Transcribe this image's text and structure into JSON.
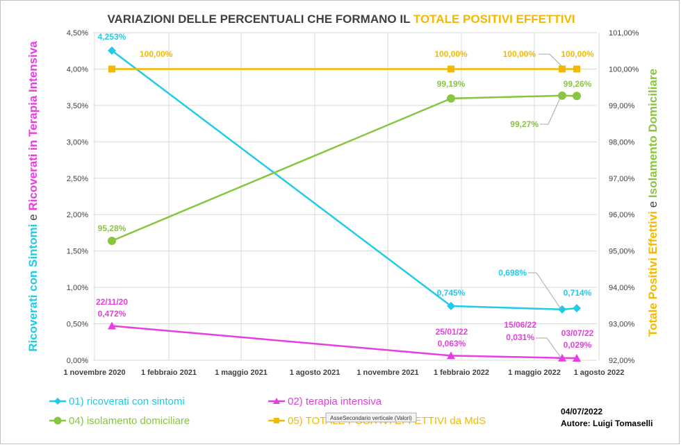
{
  "chart_data": {
    "type": "line",
    "title_parts": [
      "VARIAZIONI DELLE PERCENTUALI CHE FORMANO IL ",
      "TOTALE POSITIVI EFFETTIVI"
    ],
    "left_axis_label": [
      "Ricoverati con Sintomi",
      " e ",
      "Ricoverati in Terapia Intensiva"
    ],
    "right_axis_label": [
      "Totale Positivi Effettivi",
      " e ",
      "Isolamento Domiciliare"
    ],
    "x_tick_labels": [
      "1 novembre 2020",
      "1 febbraio 2021",
      "1 maggio 2021",
      "1 agosto 2021",
      "1 novembre 2021",
      "1 febbraio 2022",
      "1 maggio 2022",
      "1 agosto 2022"
    ],
    "left_axis": {
      "min": 0,
      "max": 4.5,
      "step": 0.5,
      "tick_labels": [
        "0,00%",
        "0,50%",
        "1,00%",
        "1,50%",
        "2,00%",
        "2,50%",
        "3,00%",
        "3,50%",
        "4,00%",
        "4,50%"
      ]
    },
    "right_axis": {
      "min": 92,
      "max": 101,
      "step": 1,
      "tick_labels": [
        "92,00%",
        "93,00%",
        "94,00%",
        "95,00%",
        "96,00%",
        "97,00%",
        "98,00%",
        "99,00%",
        "100,00%",
        "101,00%"
      ]
    },
    "dates": [
      "22/11/20",
      "25/01/22",
      "15/06/22",
      "03/07/22"
    ],
    "series": [
      {
        "key": "ricoverati",
        "name": "01) ricoverati con sintomi",
        "color": "#1ecbe8",
        "axis": "left",
        "marker": "diamond",
        "values": [
          4.253,
          0.745,
          0.698,
          0.714
        ],
        "labels": [
          "4,253%",
          "0,745%",
          "0,698%",
          "0,714%"
        ]
      },
      {
        "key": "terapia",
        "name": "02) terapia intensiva",
        "color": "#e83de3",
        "axis": "left",
        "marker": "triangle",
        "values": [
          0.472,
          0.063,
          0.031,
          0.029
        ],
        "labels": [
          "0,472%",
          "0,063%",
          "0,031%",
          "0,029%"
        ]
      },
      {
        "key": "isolamento",
        "name": "04) isolamento domiciliare",
        "color": "#88c540",
        "axis": "right",
        "marker": "circle",
        "values": [
          95.28,
          99.19,
          99.27,
          99.26
        ],
        "labels": [
          "95,28%",
          "99,19%",
          "99,27%",
          "99,26%"
        ]
      },
      {
        "key": "totale",
        "name": "05) TOTALE POSITIVI EFFETTIVI da MdS",
        "color": "#f5b800",
        "axis": "right",
        "marker": "square",
        "values": [
          100,
          100,
          100,
          100
        ],
        "labels": [
          "100,00%",
          "100,00%",
          "100,00%",
          "100,00%"
        ]
      }
    ],
    "tooltip": "AsseSecondario  verticale (Valori)",
    "date_stamp": "04/07/2022",
    "author": "Autore: Luigi Tomaselli"
  }
}
